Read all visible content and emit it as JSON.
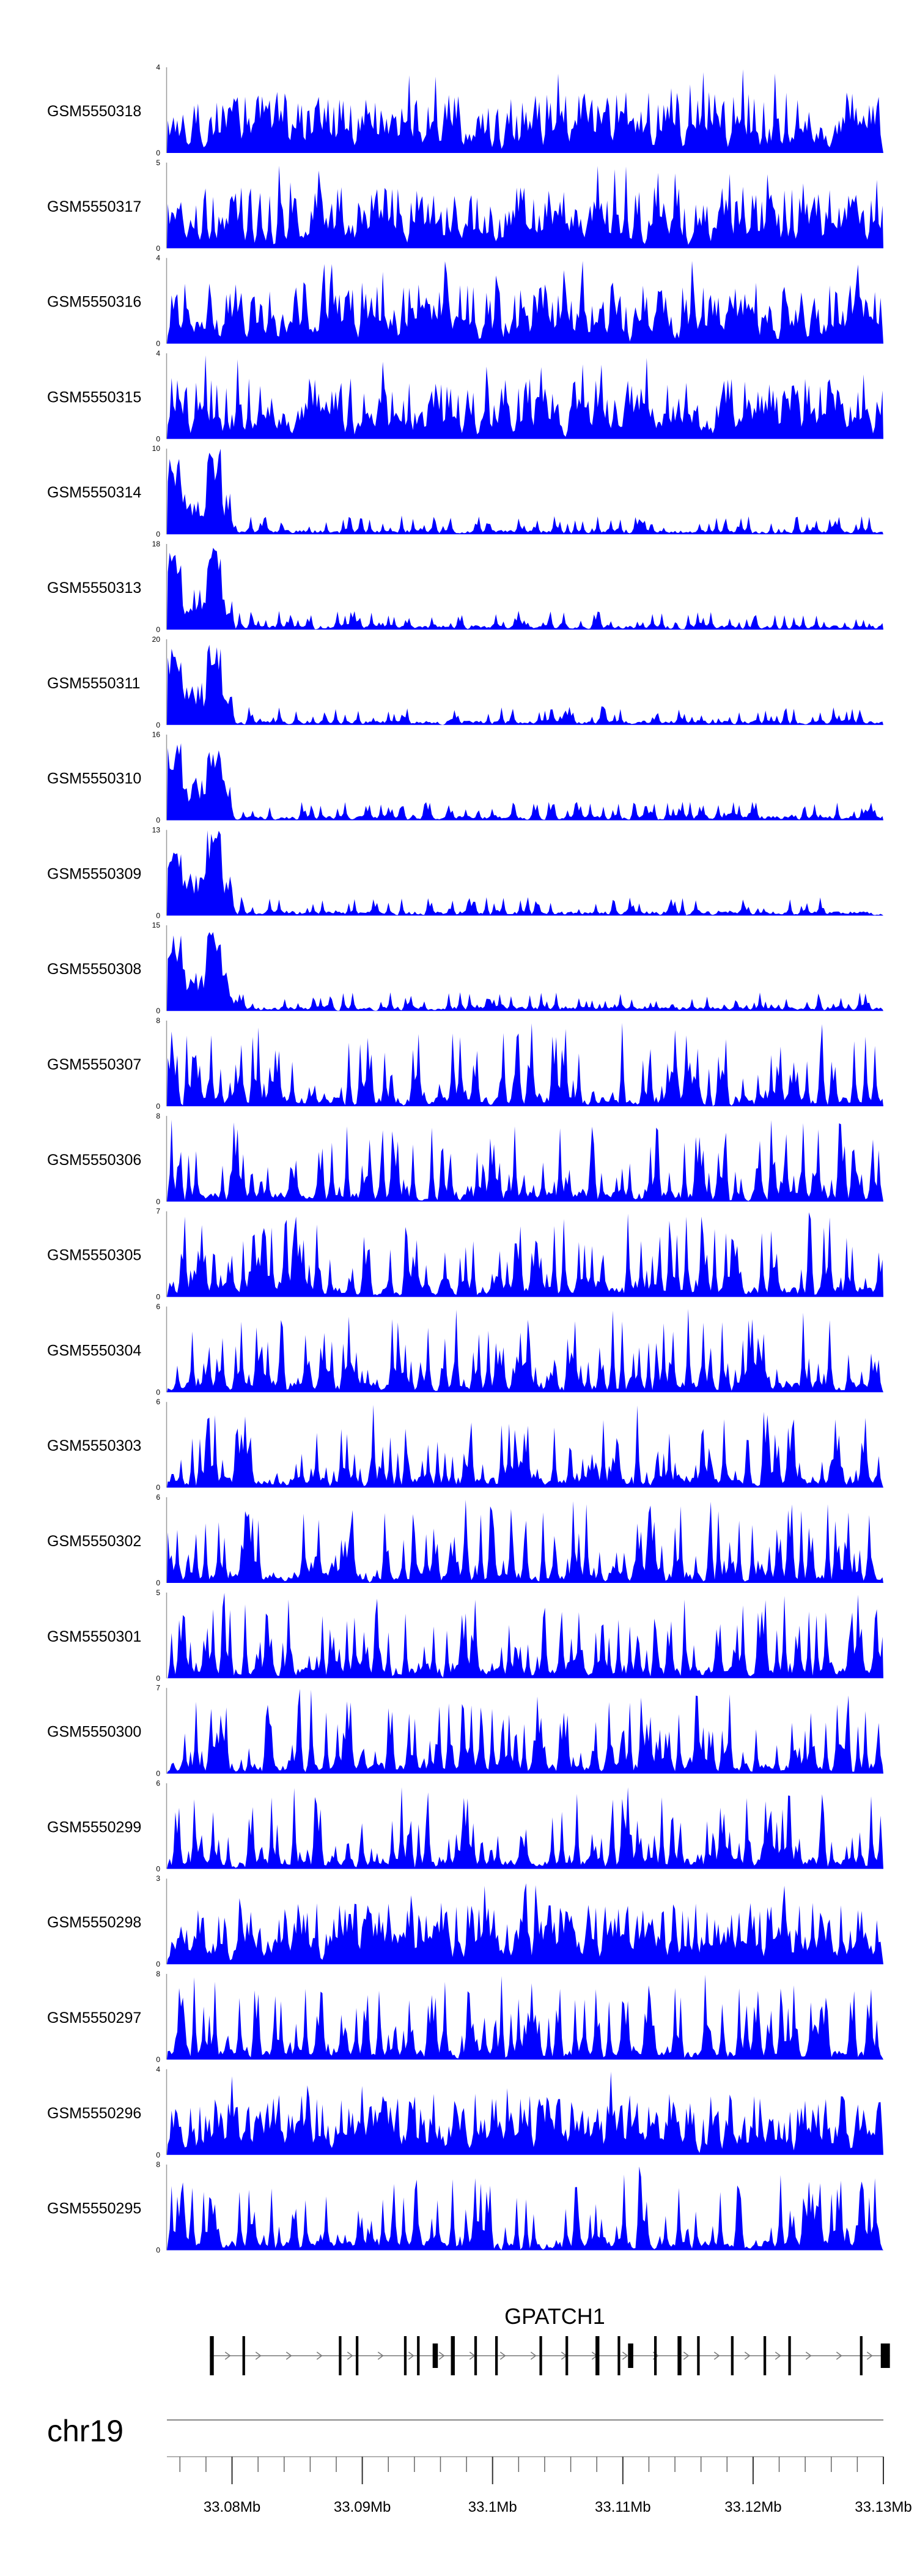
{
  "chart_data": {
    "type": "area",
    "color": "#0000ff",
    "x_unit": "Mb",
    "xlim": [
      33.075,
      33.13
    ],
    "tracks": [
      {
        "name": "GSM5550318",
        "ymax": 4,
        "ylim": [
          0,
          4
        ],
        "profile": "uniform",
        "seed": 318
      },
      {
        "name": "GSM5550317",
        "ymax": 5,
        "ylim": [
          0,
          5
        ],
        "profile": "uniform",
        "seed": 317
      },
      {
        "name": "GSM5550316",
        "ymax": 4,
        "ylim": [
          0,
          4
        ],
        "profile": "uniform",
        "seed": 316
      },
      {
        "name": "GSM5550315",
        "ymax": 4,
        "ylim": [
          0,
          4
        ],
        "profile": "uniform",
        "seed": 315
      },
      {
        "name": "GSM5550314",
        "ymax": 10,
        "ylim": [
          0,
          10
        ],
        "profile": "front",
        "seed": 314
      },
      {
        "name": "GSM5550313",
        "ymax": 18,
        "ylim": [
          0,
          18
        ],
        "profile": "front",
        "seed": 313
      },
      {
        "name": "GSM5550311",
        "ymax": 20,
        "ylim": [
          0,
          20
        ],
        "profile": "front",
        "seed": 311
      },
      {
        "name": "GSM5550310",
        "ymax": 16,
        "ylim": [
          0,
          16
        ],
        "profile": "front",
        "seed": 310
      },
      {
        "name": "GSM5550309",
        "ymax": 13,
        "ylim": [
          0,
          13
        ],
        "profile": "front",
        "seed": 309
      },
      {
        "name": "GSM5550308",
        "ymax": 15,
        "ylim": [
          0,
          15
        ],
        "profile": "front",
        "seed": 308
      },
      {
        "name": "GSM5550307",
        "ymax": 8,
        "ylim": [
          0,
          8
        ],
        "profile": "spiky",
        "seed": 307
      },
      {
        "name": "GSM5550306",
        "ymax": 8,
        "ylim": [
          0,
          8
        ],
        "profile": "spiky",
        "seed": 306
      },
      {
        "name": "GSM5550305",
        "ymax": 7,
        "ylim": [
          0,
          7
        ],
        "profile": "spiky",
        "seed": 305
      },
      {
        "name": "GSM5550304",
        "ymax": 6,
        "ylim": [
          0,
          6
        ],
        "profile": "spiky",
        "seed": 304
      },
      {
        "name": "GSM5550303",
        "ymax": 6,
        "ylim": [
          0,
          6
        ],
        "profile": "spiky",
        "seed": 303
      },
      {
        "name": "GSM5550302",
        "ymax": 6,
        "ylim": [
          0,
          6
        ],
        "profile": "spiky",
        "seed": 302
      },
      {
        "name": "GSM5550301",
        "ymax": 5,
        "ylim": [
          0,
          5
        ],
        "profile": "spiky",
        "seed": 301
      },
      {
        "name": "GSM5550300",
        "ymax": 7,
        "ylim": [
          0,
          7
        ],
        "profile": "spiky",
        "seed": 300
      },
      {
        "name": "GSM5550299",
        "ymax": 6,
        "ylim": [
          0,
          6
        ],
        "profile": "spiky",
        "seed": 299
      },
      {
        "name": "GSM5550298",
        "ymax": 3,
        "ylim": [
          0,
          3
        ],
        "profile": "uniform",
        "seed": 298
      },
      {
        "name": "GSM5550297",
        "ymax": 8,
        "ylim": [
          0,
          8
        ],
        "profile": "spiky",
        "seed": 297
      },
      {
        "name": "GSM5550296",
        "ymax": 4,
        "ylim": [
          0,
          4
        ],
        "profile": "uniform",
        "seed": 296
      },
      {
        "name": "GSM5550295",
        "ymax": 8,
        "ylim": [
          0,
          8
        ],
        "profile": "spiky",
        "seed": 295
      }
    ],
    "gene": {
      "name": "GPATCH1",
      "start_mb": 33.0783,
      "end_mb": 33.1305,
      "strand": "+",
      "exons_mb": [
        [
          33.0783,
          33.0786
        ],
        [
          33.0808,
          33.081
        ],
        [
          33.0882,
          33.0884
        ],
        [
          33.0895,
          33.0897
        ],
        [
          33.0932,
          33.0934
        ],
        [
          33.0942,
          33.0944
        ],
        [
          33.0954,
          33.0958
        ],
        [
          33.0968,
          33.0971
        ],
        [
          33.0986,
          33.0988
        ],
        [
          33.1002,
          33.1004
        ],
        [
          33.1036,
          33.1038
        ],
        [
          33.1056,
          33.1058
        ],
        [
          33.1079,
          33.1082
        ],
        [
          33.1096,
          33.1098
        ],
        [
          33.1104,
          33.1108
        ],
        [
          33.1124,
          33.1126
        ],
        [
          33.1142,
          33.1145
        ],
        [
          33.1157,
          33.1159
        ],
        [
          33.1183,
          33.1185
        ],
        [
          33.1208,
          33.121
        ],
        [
          33.1227,
          33.1229
        ],
        [
          33.1282,
          33.1284
        ],
        [
          33.1298,
          33.1305
        ]
      ]
    },
    "chromosome": "chr19",
    "xticks_major": [
      "33.08Mb",
      "33.09Mb",
      "33.1Mb",
      "33.11Mb",
      "33.12Mb",
      "33.13Mb"
    ],
    "xticks_major_values": [
      33.08,
      33.09,
      33.1,
      33.11,
      33.12,
      33.13
    ],
    "xticks_minor_step": 0.002
  }
}
